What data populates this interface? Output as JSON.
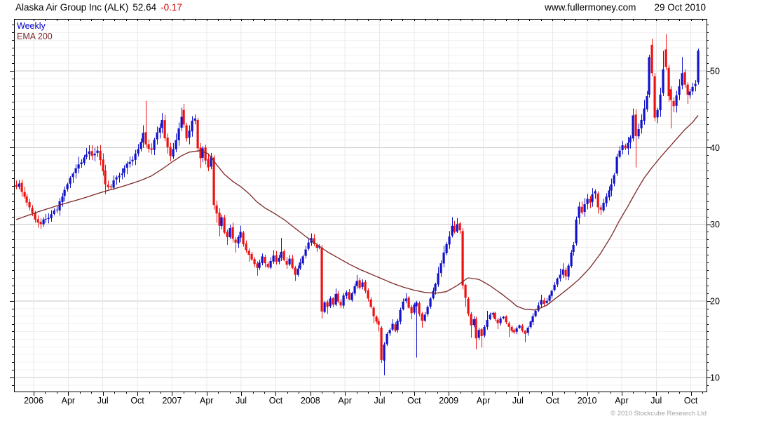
{
  "header": {
    "title": "Alaska Air Group Inc (ALK)",
    "last_price": "52.64",
    "change": "-0.17",
    "website": "www.fullermoney.com",
    "date": "29 Oct 2010"
  },
  "legend": {
    "series_label": "Weekly",
    "ema_label": "EMA 200"
  },
  "footer": {
    "copyright": "© 2010 Stockcube Research Ltd"
  },
  "chart_data": {
    "type": "candlestick",
    "title": "Alaska Air Group Inc (ALK) weekly candlestick chart with 200-day EMA",
    "instrument": "Alaska Air Group Inc (ALK)",
    "last_close": 52.64,
    "change": -0.17,
    "interval": "Weekly",
    "overlay": "EMA 200",
    "start": "Jan 2006",
    "end": "29 Oct 2010",
    "weeks": 253,
    "x_axis": {
      "tick_labels": [
        "2006",
        "Apr",
        "Jul",
        "Oct",
        "2007",
        "Apr",
        "Jul",
        "Oct",
        "2008",
        "Apr",
        "Jul",
        "Oct",
        "2009",
        "Apr",
        "Jul",
        "Oct",
        "2010",
        "Apr",
        "Jul",
        "Oct"
      ],
      "minor_ticks": "monthly"
    },
    "y_axis": {
      "side": "right",
      "tick_values": [
        10,
        20,
        30,
        40,
        50
      ],
      "minor_step": 1,
      "range": [
        8,
        56.8
      ]
    },
    "grid": {
      "horizontal_every_unit": true,
      "vertical_quarterly": true
    },
    "legend_position": "top-left",
    "colors": {
      "up": "#1212cc",
      "down": "#ee1111",
      "ema": "#7d2828",
      "grid_minor": "#f0f0f0",
      "grid_major": "#c8c8c8",
      "grid_vertical": "#e8e8e8",
      "axis": "#000000",
      "change_text": "#cc0000",
      "copyright_text": "#a2a2a2"
    },
    "anchor_format": "[week_index, close, high_or_null, low_or_null] — estimated from plot",
    "close_anchors": [
      [
        0,
        34.9
      ],
      [
        1,
        35.3
      ],
      [
        3,
        33.6
      ],
      [
        5,
        32.2
      ],
      [
        7,
        30.6
      ],
      [
        9,
        30.0,
        null,
        29.4
      ],
      [
        11,
        30.7
      ],
      [
        13,
        31.3
      ],
      [
        15,
        31.9
      ],
      [
        17,
        33.6
      ],
      [
        19,
        35.2
      ],
      [
        21,
        36.6
      ],
      [
        23,
        37.8,
        38.8
      ],
      [
        25,
        38.7
      ],
      [
        27,
        39.5,
        40.3
      ],
      [
        28,
        38.9
      ],
      [
        30,
        39.6,
        40.2
      ],
      [
        32,
        36.9
      ],
      [
        33,
        35.2,
        null,
        33.9
      ],
      [
        35,
        34.8
      ],
      [
        37,
        36.1
      ],
      [
        39,
        36.6
      ],
      [
        41,
        37.9
      ],
      [
        43,
        38.4
      ],
      [
        45,
        39.8
      ],
      [
        47,
        41.9,
        42.9
      ],
      [
        50,
        39.7
      ],
      [
        51,
        41.0
      ],
      [
        53,
        42.6
      ],
      [
        54,
        43.6,
        44.5
      ],
      [
        55,
        41.2
      ],
      [
        57,
        38.9,
        null,
        38.2
      ],
      [
        58,
        39.8
      ],
      [
        60,
        42.5
      ],
      [
        61,
        44.0,
        45.2
      ],
      [
        63,
        41.2
      ],
      [
        64,
        42.2
      ],
      [
        65,
        43.5,
        44.1
      ],
      [
        66,
        43.8,
        44.3
      ],
      [
        68,
        38.6,
        null,
        37.3
      ],
      [
        69,
        39.9
      ],
      [
        70,
        38.3
      ],
      [
        72,
        38.9,
        39.3
      ],
      [
        74,
        31.4,
        null,
        30.2
      ],
      [
        75,
        29.8,
        null,
        28.4
      ],
      [
        76,
        30.9
      ],
      [
        77,
        28.9
      ],
      [
        78,
        28.3,
        null,
        27.3
      ],
      [
        79,
        29.5
      ],
      [
        80,
        28.1
      ],
      [
        81,
        27.6,
        null,
        26.3
      ],
      [
        82,
        28.3
      ],
      [
        83,
        29.0,
        29.8
      ],
      [
        84,
        27.4
      ],
      [
        85,
        26.6
      ],
      [
        86,
        26.0,
        null,
        25.1
      ],
      [
        87,
        25.4
      ],
      [
        88,
        24.8
      ],
      [
        89,
        24.3,
        null,
        23.3
      ],
      [
        90,
        25.0
      ],
      [
        91,
        25.8
      ],
      [
        92,
        24.9
      ],
      [
        93,
        24.4
      ],
      [
        94,
        25.2
      ],
      [
        95,
        25.9,
        26.6
      ],
      [
        96,
        25.1
      ],
      [
        97,
        25.6
      ],
      [
        99,
        25.3
      ],
      [
        100,
        24.7
      ],
      [
        101,
        25.5
      ],
      [
        102,
        24.3
      ],
      [
        103,
        23.4,
        null,
        22.6
      ],
      [
        104,
        24.2
      ],
      [
        105,
        25.0
      ],
      [
        106,
        25.8
      ],
      [
        107,
        26.7
      ],
      [
        108,
        27.6
      ],
      [
        109,
        28.2,
        28.8
      ],
      [
        110,
        27.4
      ],
      [
        111,
        26.9
      ],
      [
        112,
        27.1
      ],
      [
        114,
        19.8
      ],
      [
        115,
        19.2,
        null,
        18.3
      ],
      [
        116,
        20.3
      ],
      [
        117,
        19.5
      ],
      [
        118,
        20.9,
        21.6
      ],
      [
        119,
        19.9
      ],
      [
        120,
        19.4
      ],
      [
        121,
        20.7
      ],
      [
        122,
        21.1
      ],
      [
        123,
        20.2
      ],
      [
        124,
        21.0
      ],
      [
        125,
        21.9
      ],
      [
        126,
        22.6,
        23.4
      ],
      [
        127,
        21.7
      ],
      [
        128,
        22.4
      ],
      [
        129,
        21.3
      ],
      [
        130,
        20.3
      ],
      [
        131,
        19.2
      ],
      [
        132,
        18.0,
        null,
        17.1
      ],
      [
        133,
        17.3
      ],
      [
        134,
        16.9,
        null,
        16.0
      ],
      [
        137,
        15.7
      ],
      [
        138,
        16.2
      ],
      [
        139,
        17.0,
        17.6
      ],
      [
        140,
        16.1
      ],
      [
        141,
        17.4
      ],
      [
        142,
        18.8
      ],
      [
        143,
        19.9
      ],
      [
        144,
        20.3,
        21.0
      ],
      [
        145,
        19.1
      ],
      [
        146,
        18.4,
        null,
        17.6
      ],
      [
        147,
        19.5
      ],
      [
        149,
        18.3
      ],
      [
        150,
        17.4,
        null,
        16.5
      ],
      [
        151,
        18.2
      ],
      [
        152,
        19.2
      ],
      [
        153,
        20.3
      ],
      [
        154,
        21.3
      ],
      [
        155,
        22.2
      ],
      [
        156,
        23.6,
        24.4
      ],
      [
        157,
        24.9
      ],
      [
        158,
        26.3,
        27.2
      ],
      [
        159,
        27.4
      ],
      [
        160,
        28.4,
        29.1
      ],
      [
        161,
        29.8,
        30.9
      ],
      [
        162,
        29.0
      ],
      [
        163,
        30.0,
        30.8
      ],
      [
        164,
        29.2
      ],
      [
        166,
        20.4,
        null,
        19.2
      ],
      [
        167,
        18.3
      ],
      [
        168,
        16.8,
        null,
        15.2
      ],
      [
        169,
        17.6
      ],
      [
        170,
        15.1,
        null,
        13.7
      ],
      [
        171,
        16.2
      ],
      [
        172,
        15.4,
        null,
        13.9
      ],
      [
        173,
        16.6
      ],
      [
        174,
        17.5,
        18.7
      ],
      [
        175,
        18.2
      ],
      [
        176,
        18.4
      ],
      [
        177,
        17.6
      ],
      [
        178,
        17.1,
        null,
        16.3
      ],
      [
        179,
        17.7
      ],
      [
        180,
        17.9
      ],
      [
        181,
        17.2
      ],
      [
        182,
        16.6,
        null,
        15.3
      ],
      [
        183,
        16.1
      ],
      [
        184,
        15.9
      ],
      [
        185,
        16.4
      ],
      [
        186,
        16.8
      ],
      [
        187,
        16.1
      ],
      [
        188,
        15.7,
        null,
        14.6
      ],
      [
        189,
        16.5
      ],
      [
        190,
        17.3
      ],
      [
        191,
        18.0
      ],
      [
        192,
        18.7
      ],
      [
        193,
        19.4
      ],
      [
        194,
        20.1,
        20.8
      ],
      [
        195,
        19.6
      ],
      [
        196,
        20.0
      ],
      [
        197,
        20.7
      ],
      [
        198,
        21.3
      ],
      [
        199,
        22.1
      ],
      [
        200,
        22.9
      ],
      [
        201,
        23.4,
        24.2
      ],
      [
        202,
        24.1,
        24.9
      ],
      [
        203,
        23.2
      ],
      [
        204,
        24.6
      ],
      [
        205,
        26.3
      ],
      [
        206,
        27.3
      ],
      [
        209,
        31.5
      ],
      [
        210,
        32.6,
        33.4
      ],
      [
        211,
        33.3
      ],
      [
        212,
        32.8
      ],
      [
        213,
        33.9,
        34.7
      ],
      [
        214,
        34.3
      ],
      [
        216,
        31.9,
        null,
        31.2
      ],
      [
        217,
        32.8
      ],
      [
        218,
        33.6
      ],
      [
        219,
        34.4
      ],
      [
        220,
        35.2
      ],
      [
        221,
        36.4
      ],
      [
        223,
        39.6,
        40.2
      ],
      [
        224,
        40.3
      ],
      [
        225,
        39.9
      ],
      [
        226,
        40.6
      ],
      [
        227,
        41.3
      ],
      [
        228,
        44.2,
        45.1
      ],
      [
        230,
        42.4
      ],
      [
        231,
        43.6
      ],
      [
        232,
        45.1,
        46.2
      ],
      [
        233,
        46.7
      ],
      [
        237,
        44.9
      ],
      [
        238,
        46.9
      ],
      [
        243,
        45.4,
        null,
        44.6
      ],
      [
        244,
        46.8
      ],
      [
        245,
        48.0,
        48.9
      ],
      [
        249,
        47.3
      ],
      [
        250,
        47.9
      ],
      [
        251,
        48.3,
        48.8
      ]
    ],
    "ohlc_override_format": "week: [open, high, low, close] — estimated from plot",
    "ohlc_overrides": {
      "48": [
        42.0,
        46.1,
        40.0,
        40.4
      ],
      "62": [
        44.9,
        45.7,
        42.6,
        43.0
      ],
      "67": [
        43.6,
        43.9,
        39.4,
        39.9
      ],
      "71": [
        38.5,
        39.2,
        36.9,
        37.4
      ],
      "73": [
        38.7,
        39.0,
        31.9,
        32.5
      ],
      "98": [
        25.6,
        28.2,
        25.2,
        26.4
      ],
      "113": [
        26.9,
        27.3,
        17.7,
        18.6
      ],
      "135": [
        16.5,
        16.7,
        11.9,
        12.3
      ],
      "136": [
        12.2,
        14.6,
        10.3,
        14.3
      ],
      "148": [
        19.3,
        20.0,
        12.6,
        19.8
      ],
      "165": [
        29.1,
        29.5,
        21.5,
        22.0
      ],
      "207": [
        27.5,
        31.0,
        27.2,
        30.6
      ],
      "208": [
        30.8,
        32.9,
        30.0,
        32.3
      ],
      "215": [
        34.0,
        34.3,
        31.4,
        32.2
      ],
      "222": [
        36.6,
        39.2,
        36.3,
        38.8
      ],
      "229": [
        44.3,
        45.0,
        37.4,
        41.5
      ],
      "234": [
        46.9,
        52.1,
        46.5,
        51.8
      ],
      "235": [
        53.4,
        54.2,
        49.3,
        49.7
      ],
      "236": [
        49.3,
        49.7,
        43.4,
        43.9
      ],
      "239": [
        47.1,
        52.6,
        46.7,
        50.2
      ],
      "240": [
        52.8,
        54.8,
        50.1,
        50.5
      ],
      "241": [
        50.4,
        50.8,
        46.0,
        46.7
      ],
      "242": [
        47.6,
        48.0,
        42.5,
        46.2
      ],
      "246": [
        48.1,
        51.8,
        47.6,
        49.7
      ],
      "247": [
        49.8,
        50.2,
        47.8,
        48.2
      ],
      "248": [
        48.2,
        48.5,
        45.7,
        46.9
      ],
      "252": [
        48.5,
        52.9,
        48.2,
        52.64
      ]
    },
    "ema_format": "[week_index, ema_value] — estimated from plot",
    "ema_points": [
      [
        0,
        30.6
      ],
      [
        8,
        31.6
      ],
      [
        16,
        32.5
      ],
      [
        24,
        33.3
      ],
      [
        32,
        34.2
      ],
      [
        40,
        35.0
      ],
      [
        46,
        35.7
      ],
      [
        50,
        36.3
      ],
      [
        54,
        37.2
      ],
      [
        58,
        38.2
      ],
      [
        61,
        38.9
      ],
      [
        64,
        39.4
      ],
      [
        68,
        39.6
      ],
      [
        71,
        39.2
      ],
      [
        74,
        37.8
      ],
      [
        77,
        36.5
      ],
      [
        80,
        35.6
      ],
      [
        83,
        34.9
      ],
      [
        86,
        34.0
      ],
      [
        89,
        32.9
      ],
      [
        92,
        32.1
      ],
      [
        95,
        31.5
      ],
      [
        99,
        30.6
      ],
      [
        103,
        29.5
      ],
      [
        107,
        28.4
      ],
      [
        111,
        27.4
      ],
      [
        115,
        26.4
      ],
      [
        119,
        25.6
      ],
      [
        123,
        24.8
      ],
      [
        127,
        24.1
      ],
      [
        131,
        23.5
      ],
      [
        135,
        22.9
      ],
      [
        139,
        22.3
      ],
      [
        143,
        21.8
      ],
      [
        147,
        21.4
      ],
      [
        151,
        21.1
      ],
      [
        155,
        21.0
      ],
      [
        159,
        21.2
      ],
      [
        163,
        22.0
      ],
      [
        167,
        23.0
      ],
      [
        171,
        22.8
      ],
      [
        175,
        22.0
      ],
      [
        179,
        21.0
      ],
      [
        182,
        20.2
      ],
      [
        185,
        19.3
      ],
      [
        188,
        18.9
      ],
      [
        192,
        18.8
      ],
      [
        196,
        19.4
      ],
      [
        200,
        20.5
      ],
      [
        204,
        21.6
      ],
      [
        208,
        22.8
      ],
      [
        212,
        24.3
      ],
      [
        216,
        26.2
      ],
      [
        220,
        28.5
      ],
      [
        223,
        30.5
      ],
      [
        226,
        32.3
      ],
      [
        229,
        34.2
      ],
      [
        232,
        36.0
      ],
      [
        235,
        37.4
      ],
      [
        238,
        38.7
      ],
      [
        241,
        39.9
      ],
      [
        244,
        41.1
      ],
      [
        247,
        42.3
      ],
      [
        250,
        43.3
      ],
      [
        252,
        44.2
      ]
    ]
  }
}
